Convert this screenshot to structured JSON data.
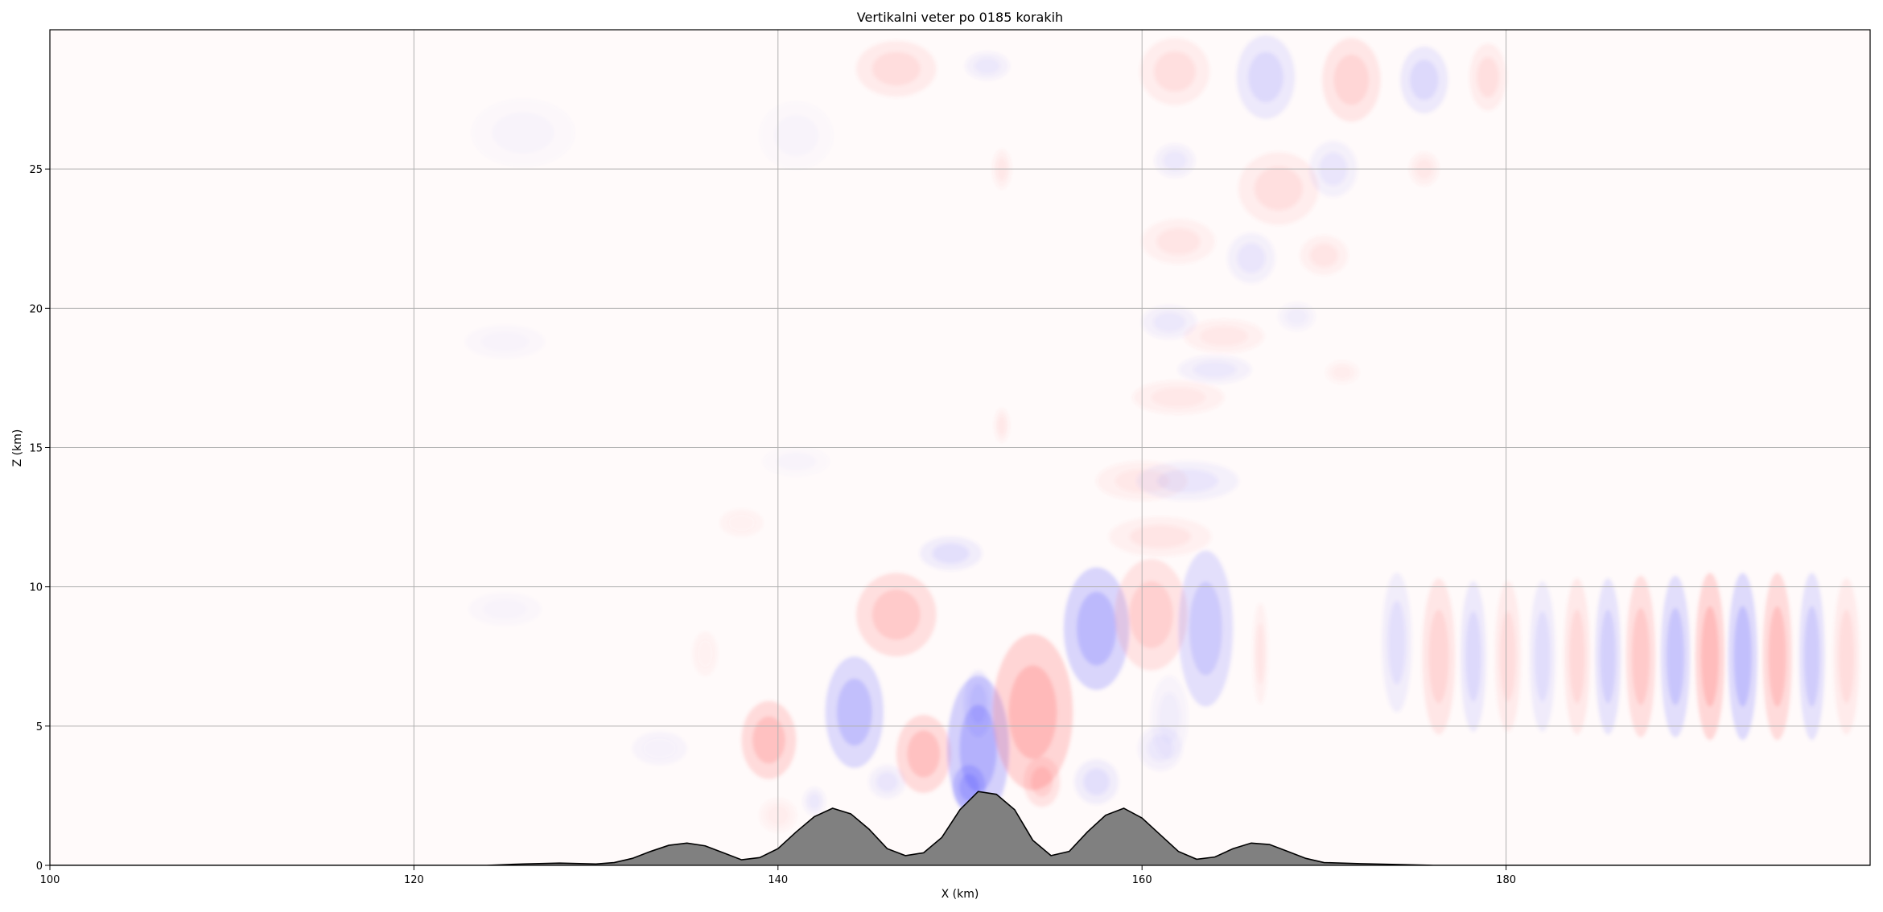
{
  "chart_data": {
    "type": "contour",
    "title": "Vertikalni veter po 0185 korakih",
    "xlabel": "X (km)",
    "ylabel": "Z (km)",
    "xlim": [
      100,
      200
    ],
    "ylim": [
      0,
      30
    ],
    "xticks": [
      100,
      120,
      140,
      160,
      180
    ],
    "xtick_labels": [
      "100",
      "120",
      "140",
      "160",
      "180"
    ],
    "yticks": [
      0,
      5,
      10,
      15,
      20,
      25
    ],
    "ytick_labels": [
      "0",
      "5",
      "10",
      "15",
      "20",
      "25"
    ],
    "grid": true,
    "colormap": "bwr",
    "colors": {
      "positive": "#ff5a5a",
      "negative": "#5a5aff",
      "background": "#fffafa",
      "terrain_fill": "#808080",
      "terrain_edge": "#000000",
      "grid": "#b0b0b0"
    },
    "terrain": {
      "x": [
        100,
        124,
        126,
        128,
        130,
        131,
        132,
        133,
        134,
        135,
        136,
        137,
        138,
        139,
        140,
        141,
        142,
        143,
        144,
        145,
        146,
        147,
        148,
        149,
        150,
        151,
        152,
        153,
        154,
        155,
        156,
        157,
        158,
        159,
        160,
        161,
        162,
        163,
        164,
        165,
        166,
        167,
        168,
        169,
        170,
        172,
        174,
        176,
        200
      ],
      "z": [
        0,
        0,
        0.05,
        0.08,
        0.05,
        0.1,
        0.25,
        0.5,
        0.72,
        0.8,
        0.7,
        0.45,
        0.2,
        0.28,
        0.6,
        1.2,
        1.75,
        2.05,
        1.85,
        1.3,
        0.6,
        0.35,
        0.45,
        1.0,
        2.0,
        2.65,
        2.55,
        2.0,
        0.9,
        0.35,
        0.5,
        1.2,
        1.8,
        2.05,
        1.7,
        1.1,
        0.5,
        0.22,
        0.3,
        0.6,
        0.8,
        0.75,
        0.5,
        0.25,
        0.1,
        0.06,
        0.03,
        0,
        0
      ]
    },
    "anomalies": [
      {
        "x": 136,
        "z": 7.6,
        "rx": 0.7,
        "rz": 0.8,
        "sign": 1,
        "a": 0.05
      },
      {
        "x": 126,
        "z": 26.3,
        "rx": 2.8,
        "rz": 1.2,
        "sign": -1,
        "a": 0.04
      },
      {
        "x": 138,
        "z": 12.3,
        "rx": 1.2,
        "rz": 0.5,
        "sign": 1,
        "a": 0.05
      },
      {
        "x": 133.5,
        "z": 4.2,
        "rx": 1.5,
        "rz": 0.6,
        "sign": -1,
        "a": 0.05
      },
      {
        "x": 140,
        "z": 1.8,
        "rx": 1.0,
        "rz": 0.6,
        "sign": 1,
        "a": 0.08
      },
      {
        "x": 139.5,
        "z": 4.5,
        "rx": 1.5,
        "rz": 1.4,
        "sign": 1,
        "a": 0.35
      },
      {
        "x": 142,
        "z": 2.3,
        "rx": 0.6,
        "rz": 0.5,
        "sign": -1,
        "a": 0.1
      },
      {
        "x": 144.2,
        "z": 5.5,
        "rx": 1.6,
        "rz": 2.0,
        "sign": -1,
        "a": 0.38
      },
      {
        "x": 146.5,
        "z": 9.0,
        "rx": 2.2,
        "rz": 1.5,
        "sign": 1,
        "a": 0.3
      },
      {
        "x": 146,
        "z": 3.0,
        "rx": 1.0,
        "rz": 0.6,
        "sign": -1,
        "a": 0.12
      },
      {
        "x": 148,
        "z": 4.0,
        "rx": 1.5,
        "rz": 1.4,
        "sign": 1,
        "a": 0.35
      },
      {
        "x": 151,
        "z": 4.2,
        "rx": 1.7,
        "rz": 2.6,
        "sign": -1,
        "a": 0.48
      },
      {
        "x": 150.5,
        "z": 2.8,
        "rx": 0.9,
        "rz": 0.8,
        "sign": -1,
        "a": 0.45
      },
      {
        "x": 149.5,
        "z": 11.2,
        "rx": 1.7,
        "rz": 0.6,
        "sign": -1,
        "a": 0.15
      },
      {
        "x": 151,
        "z": 5.8,
        "rx": 0.8,
        "rz": 1.2,
        "sign": -1,
        "a": 0.2
      },
      {
        "x": 154,
        "z": 5.5,
        "rx": 2.2,
        "rz": 2.8,
        "sign": 1,
        "a": 0.42
      },
      {
        "x": 154.5,
        "z": 3.0,
        "rx": 1.0,
        "rz": 0.9,
        "sign": 1,
        "a": 0.25
      },
      {
        "x": 157.5,
        "z": 8.5,
        "rx": 1.8,
        "rz": 2.2,
        "sign": -1,
        "a": 0.42
      },
      {
        "x": 157.5,
        "z": 3.0,
        "rx": 1.2,
        "rz": 0.8,
        "sign": -1,
        "a": 0.15
      },
      {
        "x": 160.5,
        "z": 9.0,
        "rx": 2.0,
        "rz": 2.0,
        "sign": 1,
        "a": 0.25
      },
      {
        "x": 161,
        "z": 11.8,
        "rx": 2.8,
        "rz": 0.7,
        "sign": 1,
        "a": 0.12
      },
      {
        "x": 160,
        "z": 13.8,
        "rx": 2.5,
        "rz": 0.7,
        "sign": 1,
        "a": 0.1
      },
      {
        "x": 161,
        "z": 4.2,
        "rx": 1.2,
        "rz": 0.8,
        "sign": -1,
        "a": 0.1
      },
      {
        "x": 163.5,
        "z": 8.5,
        "rx": 1.5,
        "rz": 2.8,
        "sign": -1,
        "a": 0.3
      },
      {
        "x": 161.5,
        "z": 5.3,
        "rx": 1.0,
        "rz": 1.5,
        "sign": -1,
        "a": 0.08
      },
      {
        "x": 166.5,
        "z": 7.6,
        "rx": 0.4,
        "rz": 1.8,
        "sign": 1,
        "a": 0.12
      },
      {
        "x": 162.5,
        "z": 13.8,
        "rx": 2.8,
        "rz": 0.7,
        "sign": -1,
        "a": 0.12
      },
      {
        "x": 162,
        "z": 16.8,
        "rx": 2.5,
        "rz": 0.6,
        "sign": 1,
        "a": 0.1
      },
      {
        "x": 164.5,
        "z": 19.0,
        "rx": 2.2,
        "rz": 0.6,
        "sign": 1,
        "a": 0.1
      },
      {
        "x": 164,
        "z": 17.8,
        "rx": 2.0,
        "rz": 0.5,
        "sign": -1,
        "a": 0.1
      },
      {
        "x": 161.5,
        "z": 19.5,
        "rx": 1.5,
        "rz": 0.6,
        "sign": -1,
        "a": 0.1
      },
      {
        "x": 162,
        "z": 22.4,
        "rx": 2.0,
        "rz": 0.8,
        "sign": 1,
        "a": 0.12
      },
      {
        "x": 166,
        "z": 21.8,
        "rx": 1.3,
        "rz": 0.9,
        "sign": -1,
        "a": 0.12
      },
      {
        "x": 167.5,
        "z": 24.3,
        "rx": 2.2,
        "rz": 1.3,
        "sign": 1,
        "a": 0.15
      },
      {
        "x": 170.5,
        "z": 25.0,
        "rx": 1.3,
        "rz": 1.0,
        "sign": -1,
        "a": 0.12
      },
      {
        "x": 170,
        "z": 21.9,
        "rx": 1.3,
        "rz": 0.7,
        "sign": 1,
        "a": 0.12
      },
      {
        "x": 168.5,
        "z": 19.7,
        "rx": 1.0,
        "rz": 0.5,
        "sign": -1,
        "a": 0.08
      },
      {
        "x": 171,
        "z": 17.7,
        "rx": 0.9,
        "rz": 0.4,
        "sign": 1,
        "a": 0.08
      },
      {
        "x": 161.8,
        "z": 28.5,
        "rx": 1.9,
        "rz": 1.2,
        "sign": 1,
        "a": 0.15
      },
      {
        "x": 166.8,
        "z": 28.3,
        "rx": 1.6,
        "rz": 1.5,
        "sign": -1,
        "a": 0.2
      },
      {
        "x": 171.5,
        "z": 28.2,
        "rx": 1.6,
        "rz": 1.5,
        "sign": 1,
        "a": 0.22
      },
      {
        "x": 175.5,
        "z": 28.2,
        "rx": 1.3,
        "rz": 1.2,
        "sign": -1,
        "a": 0.2
      },
      {
        "x": 179,
        "z": 28.3,
        "rx": 1.0,
        "rz": 1.2,
        "sign": 1,
        "a": 0.15
      },
      {
        "x": 146.5,
        "z": 28.6,
        "rx": 2.2,
        "rz": 1.0,
        "sign": 1,
        "a": 0.18
      },
      {
        "x": 151.5,
        "z": 28.7,
        "rx": 1.2,
        "rz": 0.5,
        "sign": -1,
        "a": 0.1
      },
      {
        "x": 175.5,
        "z": 25.0,
        "rx": 0.8,
        "rz": 0.6,
        "sign": 1,
        "a": 0.1
      },
      {
        "x": 161.8,
        "z": 25.3,
        "rx": 1.1,
        "rz": 0.6,
        "sign": -1,
        "a": 0.1
      },
      {
        "x": 152.3,
        "z": 25.0,
        "rx": 0.5,
        "rz": 0.7,
        "sign": 1,
        "a": 0.1
      },
      {
        "x": 152.3,
        "z": 15.8,
        "rx": 0.4,
        "rz": 0.6,
        "sign": 1,
        "a": 0.1
      },
      {
        "x": 141,
        "z": 14.5,
        "rx": 1.8,
        "rz": 0.5,
        "sign": -1,
        "a": 0.04
      },
      {
        "x": 125,
        "z": 18.8,
        "rx": 2.2,
        "rz": 0.6,
        "sign": -1,
        "a": 0.03
      },
      {
        "x": 125,
        "z": 9.2,
        "rx": 2.0,
        "rz": 0.6,
        "sign": -1,
        "a": 0.03
      },
      {
        "x": 141,
        "z": 26.2,
        "rx": 2.0,
        "rz": 1.2,
        "sign": -1,
        "a": 0.04
      },
      {
        "x": 174,
        "z": 8.0,
        "rx": 0.8,
        "rz": 2.5,
        "sign": -1,
        "a": 0.15
      },
      {
        "x": 176.3,
        "z": 7.5,
        "rx": 0.9,
        "rz": 2.8,
        "sign": 1,
        "a": 0.22
      },
      {
        "x": 178.2,
        "z": 7.5,
        "rx": 0.7,
        "rz": 2.7,
        "sign": -1,
        "a": 0.2
      },
      {
        "x": 180.1,
        "z": 7.5,
        "rx": 0.7,
        "rz": 2.7,
        "sign": 1,
        "a": 0.18
      },
      {
        "x": 182,
        "z": 7.5,
        "rx": 0.7,
        "rz": 2.7,
        "sign": -1,
        "a": 0.18
      },
      {
        "x": 183.9,
        "z": 7.5,
        "rx": 0.7,
        "rz": 2.8,
        "sign": 1,
        "a": 0.2
      },
      {
        "x": 185.6,
        "z": 7.5,
        "rx": 0.7,
        "rz": 2.8,
        "sign": -1,
        "a": 0.25
      },
      {
        "x": 187.4,
        "z": 7.5,
        "rx": 0.8,
        "rz": 2.9,
        "sign": 1,
        "a": 0.3
      },
      {
        "x": 189.3,
        "z": 7.5,
        "rx": 0.8,
        "rz": 2.9,
        "sign": -1,
        "a": 0.33
      },
      {
        "x": 191.2,
        "z": 7.5,
        "rx": 0.8,
        "rz": 3.0,
        "sign": 1,
        "a": 0.4
      },
      {
        "x": 193,
        "z": 7.5,
        "rx": 0.8,
        "rz": 3.0,
        "sign": -1,
        "a": 0.38
      },
      {
        "x": 194.9,
        "z": 7.5,
        "rx": 0.8,
        "rz": 3.0,
        "sign": 1,
        "a": 0.35
      },
      {
        "x": 196.8,
        "z": 7.5,
        "rx": 0.7,
        "rz": 3.0,
        "sign": -1,
        "a": 0.28
      },
      {
        "x": 198.7,
        "z": 7.5,
        "rx": 0.7,
        "rz": 2.8,
        "sign": 1,
        "a": 0.18
      }
    ]
  }
}
